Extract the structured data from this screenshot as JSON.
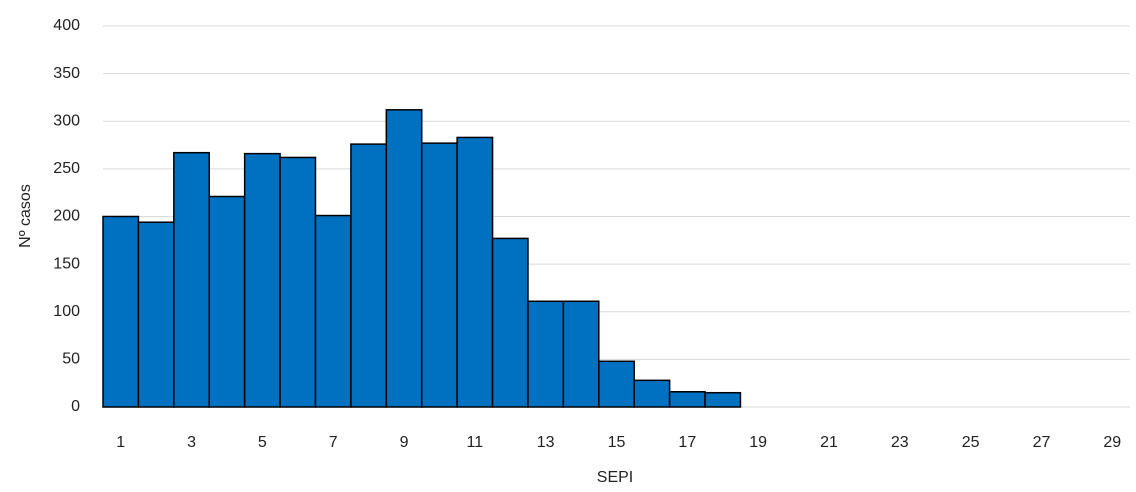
{
  "chart_data": {
    "type": "bar",
    "x_label": "SEPI",
    "y_label": "Nº casos",
    "categories": [
      1,
      null,
      3,
      null,
      5,
      null,
      7,
      null,
      9,
      null,
      11,
      null,
      13,
      null,
      15,
      null,
      17,
      null,
      19,
      null,
      21,
      null,
      23,
      null,
      25,
      null,
      27,
      null,
      29
    ],
    "values": [
      200,
      194,
      267,
      221,
      266,
      262,
      201,
      276,
      312,
      277,
      283,
      177,
      111,
      111,
      48,
      28,
      16,
      15,
      0,
      0,
      0,
      0,
      0,
      0,
      0,
      0,
      0,
      0,
      0
    ],
    "color": "#0070c0",
    "ylim": [
      0,
      400
    ],
    "yticks": [
      0,
      50,
      100,
      150,
      200,
      250,
      300,
      350,
      400
    ],
    "grid": true
  }
}
